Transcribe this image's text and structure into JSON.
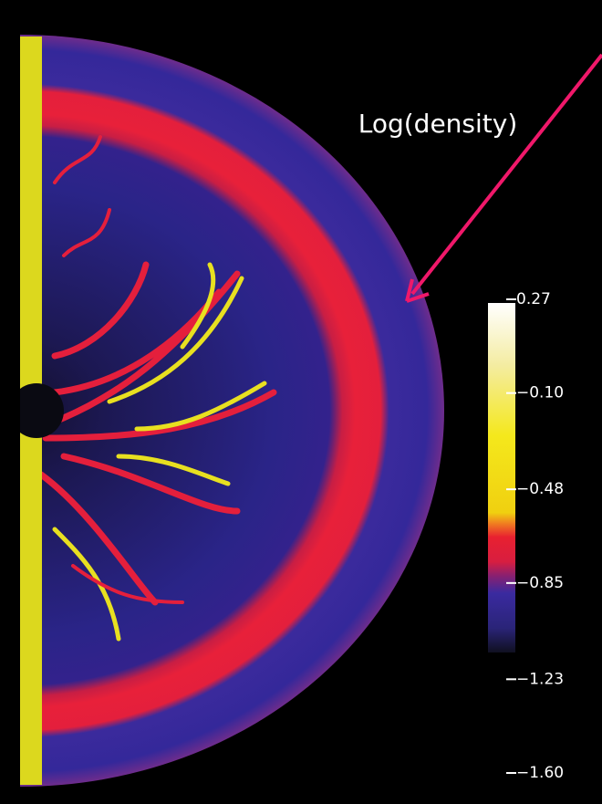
{
  "annotation": "Log(density)",
  "colorbar": {
    "ticks": [
      0.27,
      {
        "value": -0.1,
        "label": "−0.10"
      },
      {
        "value": -0.48,
        "label": "−0.48"
      },
      {
        "value": -0.85,
        "label": "−0.85"
      },
      {
        "value": -1.23,
        "label": "−1.23"
      },
      {
        "value": -1.6,
        "label": "−1.60"
      }
    ]
  }
}
